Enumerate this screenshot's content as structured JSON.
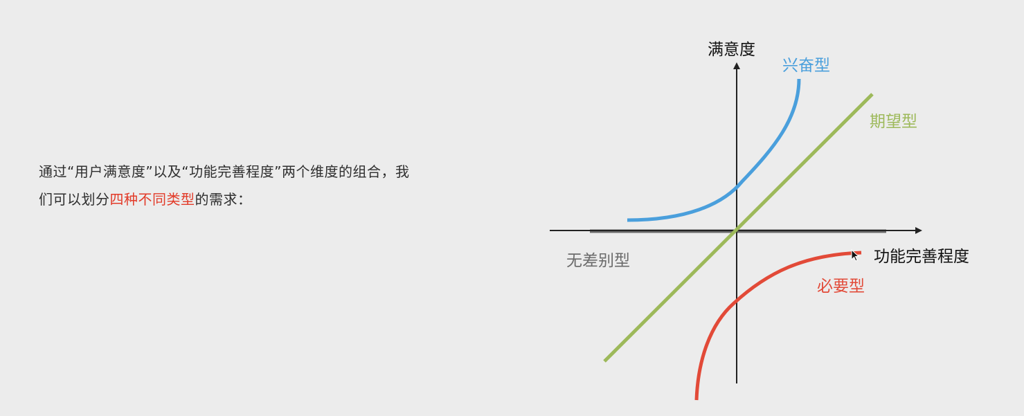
{
  "intro": {
    "line1": "通过“用户满意度”以及“功能完善程度”两个维度的组合，我",
    "line2_prefix": "们可以划分",
    "line2_highlight": "四种不同类型",
    "line2_suffix": "的需求："
  },
  "diagram": {
    "y_axis_label": "满意度",
    "x_axis_label": "功能完善程度",
    "types": {
      "excitement": {
        "label": "兴奋型",
        "color": "#4a9fdc"
      },
      "performance": {
        "label": "期望型",
        "color": "#9db95a"
      },
      "indifferent": {
        "label": "无差别型",
        "color": "#6b6b6b"
      },
      "must_be": {
        "label": "必要型",
        "color": "#e24a38"
      }
    },
    "axis_color": "#222222",
    "highlight_color": "#e23a28"
  }
}
